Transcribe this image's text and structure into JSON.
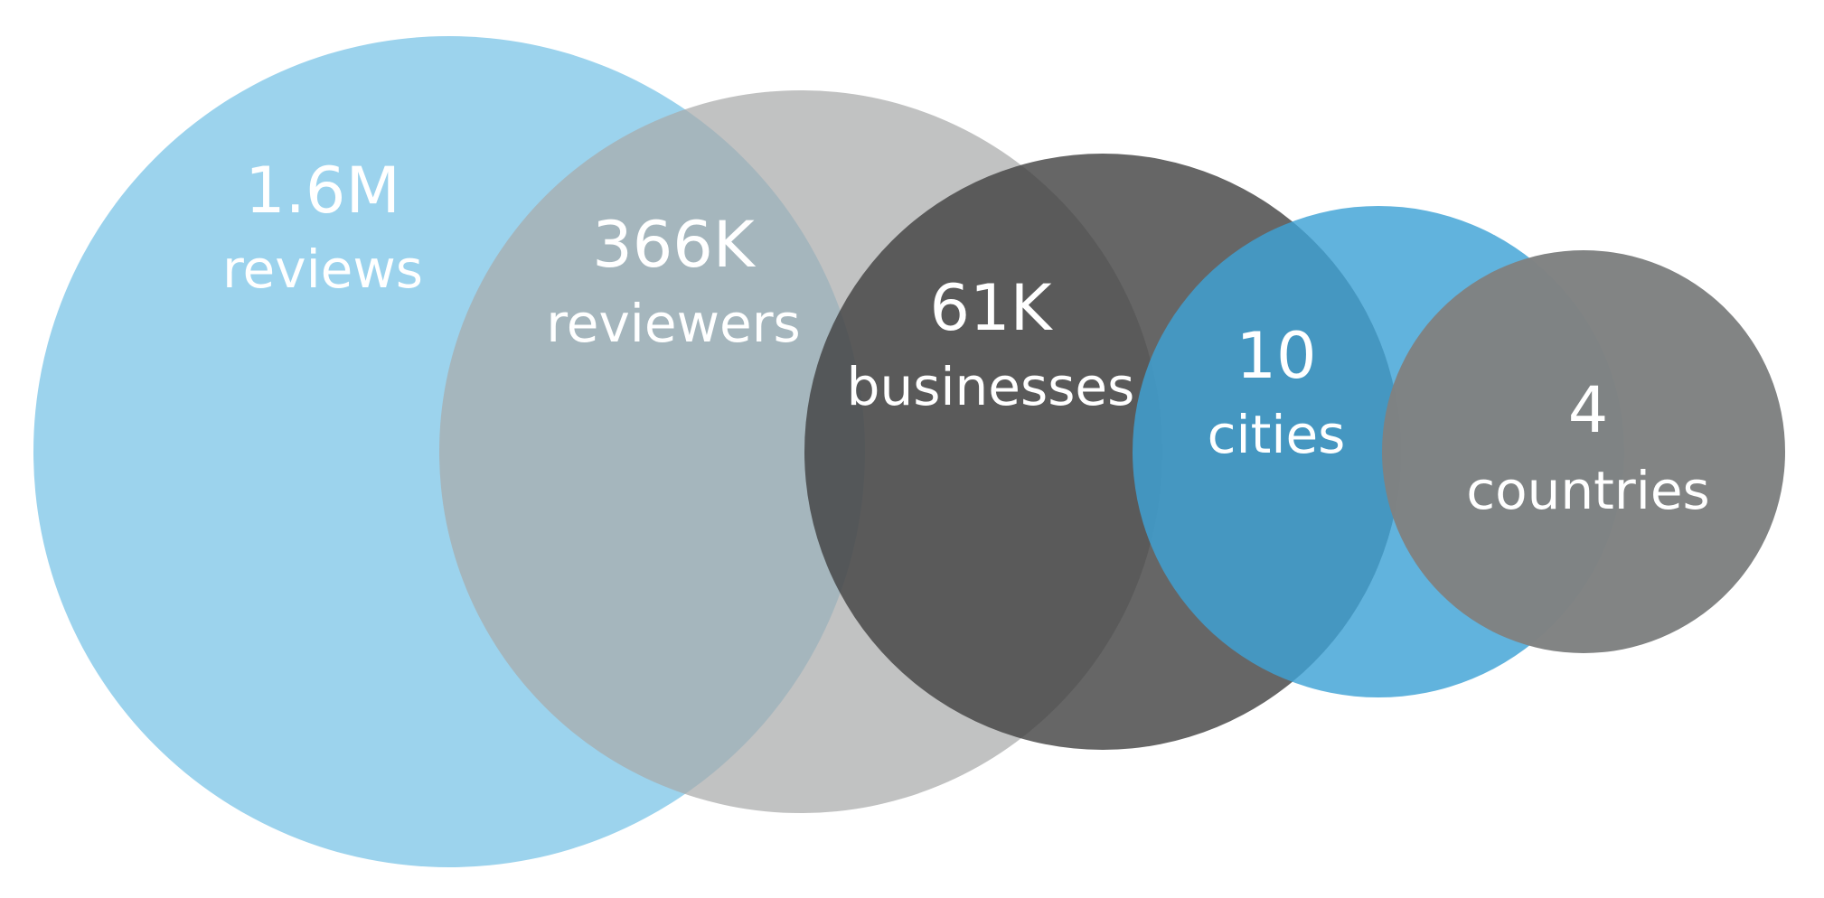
{
  "stats": [
    {
      "value": "1.6M",
      "label": "reviews",
      "color": "#8ECDEB",
      "opacity": 0.88
    },
    {
      "value": "366K",
      "label": "reviewers",
      "color": "#A9AAAA",
      "opacity": 0.72
    },
    {
      "value": "61K",
      "label": "businesses",
      "color": "#404040",
      "opacity": 0.8
    },
    {
      "value": "10",
      "label": "cities",
      "color": "#3EA2D6",
      "opacity": 0.82
    },
    {
      "value": "4",
      "label": "countries",
      "color": "#7F8282",
      "opacity": 0.98
    }
  ]
}
